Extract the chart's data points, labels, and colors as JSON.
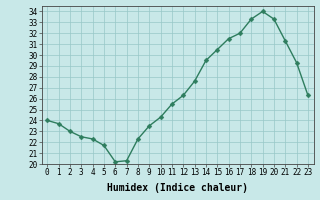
{
  "x": [
    0,
    1,
    2,
    3,
    4,
    5,
    6,
    7,
    8,
    9,
    10,
    11,
    12,
    13,
    14,
    15,
    16,
    17,
    18,
    19,
    20,
    21,
    22,
    23
  ],
  "y": [
    24.0,
    23.7,
    23.0,
    22.5,
    22.3,
    21.7,
    20.2,
    20.3,
    22.3,
    23.5,
    24.3,
    25.5,
    26.3,
    27.6,
    29.5,
    30.5,
    31.5,
    32.0,
    33.3,
    34.0,
    33.3,
    31.3,
    29.3,
    26.3
  ],
  "xlabel": "Humidex (Indice chaleur)",
  "ylim": [
    20,
    34.5
  ],
  "xlim": [
    -0.5,
    23.5
  ],
  "yticks": [
    20,
    21,
    22,
    23,
    24,
    25,
    26,
    27,
    28,
    29,
    30,
    31,
    32,
    33,
    34
  ],
  "xticks": [
    0,
    1,
    2,
    3,
    4,
    5,
    6,
    7,
    8,
    9,
    10,
    11,
    12,
    13,
    14,
    15,
    16,
    17,
    18,
    19,
    20,
    21,
    22,
    23
  ],
  "line_color": "#2e7d5e",
  "marker_color": "#2e7d5e",
  "bg_color": "#c8e8e8",
  "grid_color": "#98c8c8",
  "tick_label_fontsize": 5.5,
  "xlabel_fontsize": 7.0,
  "marker_size": 2.5,
  "line_width": 1.0
}
